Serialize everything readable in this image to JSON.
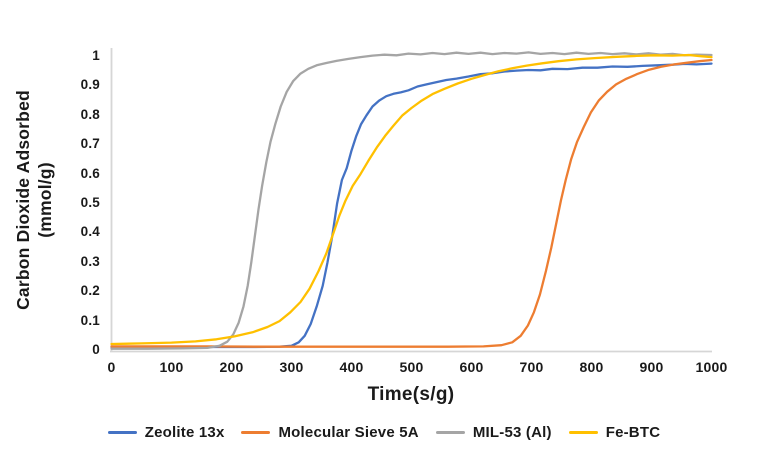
{
  "figure": {
    "background": "#FFFFFF",
    "text_color": "#1A1A1A",
    "axis_line_color": "#D6D6D6"
  },
  "chart_data": {
    "type": "line",
    "title": "",
    "xlabel": "Time(s/g)",
    "ylabel_line1": "Carbon Dioxide Adsorbed",
    "ylabel_line2": "(mmol/g)",
    "xlim": [
      0,
      1000
    ],
    "ylim": [
      0,
      1
    ],
    "grid": false,
    "legend_position": "bottom",
    "x_ticks": [
      {
        "label": "0",
        "value": 0
      },
      {
        "label": "100",
        "value": 100
      },
      {
        "label": "200",
        "value": 200
      },
      {
        "label": "300",
        "value": 300
      },
      {
        "label": "400",
        "value": 400
      },
      {
        "label": "500",
        "value": 500
      },
      {
        "label": "600",
        "value": 600
      },
      {
        "label": "700",
        "value": 700
      },
      {
        "label": "800",
        "value": 800
      },
      {
        "label": "900",
        "value": 900
      },
      {
        "label": "1000",
        "value": 1000
      }
    ],
    "y_ticks": [
      {
        "label": "1",
        "value": 1.0
      },
      {
        "label": "0.9",
        "value": 0.9
      },
      {
        "label": "0.8",
        "value": 0.8
      },
      {
        "label": "0.7",
        "value": 0.7
      },
      {
        "label": "0.6",
        "value": 0.6
      },
      {
        "label": "0.5",
        "value": 0.5
      },
      {
        "label": "0.4",
        "value": 0.4
      },
      {
        "label": "0.3",
        "value": 0.3
      },
      {
        "label": "0.2",
        "value": 0.2
      },
      {
        "label": "0.1",
        "value": 0.1
      },
      {
        "label": "0",
        "value": 0.0
      }
    ],
    "series": [
      {
        "name": "Zeolite 13x",
        "color": "#4472C4",
        "points": [
          [
            0,
            0.012
          ],
          [
            60,
            0.012
          ],
          [
            120,
            0.012
          ],
          [
            180,
            0.012
          ],
          [
            240,
            0.012
          ],
          [
            280,
            0.013
          ],
          [
            300,
            0.016
          ],
          [
            312,
            0.028
          ],
          [
            322,
            0.05
          ],
          [
            332,
            0.09
          ],
          [
            342,
            0.15
          ],
          [
            352,
            0.22
          ],
          [
            360,
            0.3
          ],
          [
            368,
            0.39
          ],
          [
            376,
            0.5
          ],
          [
            384,
            0.58
          ],
          [
            392,
            0.62
          ],
          [
            400,
            0.68
          ],
          [
            408,
            0.73
          ],
          [
            416,
            0.77
          ],
          [
            425,
            0.8
          ],
          [
            435,
            0.83
          ],
          [
            446,
            0.85
          ],
          [
            458,
            0.865
          ],
          [
            470,
            0.873
          ],
          [
            482,
            0.878
          ],
          [
            495,
            0.885
          ],
          [
            510,
            0.898
          ],
          [
            525,
            0.905
          ],
          [
            540,
            0.912
          ],
          [
            558,
            0.92
          ],
          [
            575,
            0.925
          ],
          [
            595,
            0.932
          ],
          [
            615,
            0.94
          ],
          [
            635,
            0.943
          ],
          [
            655,
            0.949
          ],
          [
            675,
            0.952
          ],
          [
            695,
            0.954
          ],
          [
            715,
            0.953
          ],
          [
            735,
            0.958
          ],
          [
            760,
            0.957
          ],
          [
            785,
            0.962
          ],
          [
            810,
            0.962
          ],
          [
            835,
            0.966
          ],
          [
            860,
            0.965
          ],
          [
            885,
            0.968
          ],
          [
            910,
            0.97
          ],
          [
            935,
            0.972
          ],
          [
            955,
            0.975
          ],
          [
            975,
            0.973
          ],
          [
            1000,
            0.976
          ]
        ]
      },
      {
        "name": "Molecular Sieve 5A",
        "color": "#ED7D31",
        "points": [
          [
            0,
            0.014
          ],
          [
            80,
            0.014
          ],
          [
            160,
            0.014
          ],
          [
            240,
            0.013
          ],
          [
            320,
            0.013
          ],
          [
            400,
            0.013
          ],
          [
            480,
            0.013
          ],
          [
            560,
            0.013
          ],
          [
            620,
            0.014
          ],
          [
            650,
            0.018
          ],
          [
            668,
            0.028
          ],
          [
            682,
            0.05
          ],
          [
            694,
            0.085
          ],
          [
            704,
            0.13
          ],
          [
            714,
            0.19
          ],
          [
            724,
            0.27
          ],
          [
            733,
            0.35
          ],
          [
            741,
            0.43
          ],
          [
            749,
            0.51
          ],
          [
            757,
            0.58
          ],
          [
            766,
            0.65
          ],
          [
            776,
            0.71
          ],
          [
            787,
            0.76
          ],
          [
            799,
            0.81
          ],
          [
            812,
            0.85
          ],
          [
            826,
            0.88
          ],
          [
            841,
            0.905
          ],
          [
            858,
            0.924
          ],
          [
            876,
            0.94
          ],
          [
            896,
            0.955
          ],
          [
            916,
            0.965
          ],
          [
            938,
            0.973
          ],
          [
            960,
            0.979
          ],
          [
            980,
            0.984
          ],
          [
            1000,
            0.988
          ]
        ]
      },
      {
        "name": "MIL-53 (Al)",
        "color": "#A5A5A5",
        "points": [
          [
            0,
            0.006
          ],
          [
            60,
            0.006
          ],
          [
            120,
            0.007
          ],
          [
            160,
            0.009
          ],
          [
            180,
            0.016
          ],
          [
            193,
            0.03
          ],
          [
            203,
            0.055
          ],
          [
            212,
            0.095
          ],
          [
            220,
            0.15
          ],
          [
            227,
            0.22
          ],
          [
            233,
            0.3
          ],
          [
            239,
            0.39
          ],
          [
            245,
            0.48
          ],
          [
            251,
            0.56
          ],
          [
            258,
            0.64
          ],
          [
            265,
            0.71
          ],
          [
            273,
            0.77
          ],
          [
            282,
            0.83
          ],
          [
            292,
            0.88
          ],
          [
            303,
            0.917
          ],
          [
            315,
            0.942
          ],
          [
            328,
            0.958
          ],
          [
            342,
            0.97
          ],
          [
            358,
            0.978
          ],
          [
            375,
            0.985
          ],
          [
            395,
            0.992
          ],
          [
            415,
            0.998
          ],
          [
            435,
            1.003
          ],
          [
            455,
            1.006
          ],
          [
            475,
            1.004
          ],
          [
            495,
            1.01
          ],
          [
            515,
            1.007
          ],
          [
            535,
            1.012
          ],
          [
            555,
            1.008
          ],
          [
            575,
            1.013
          ],
          [
            595,
            1.009
          ],
          [
            615,
            1.013
          ],
          [
            635,
            1.008
          ],
          [
            655,
            1.012
          ],
          [
            675,
            1.01
          ],
          [
            695,
            1.014
          ],
          [
            715,
            1.009
          ],
          [
            735,
            1.012
          ],
          [
            755,
            1.008
          ],
          [
            775,
            1.013
          ],
          [
            795,
            1.009
          ],
          [
            815,
            1.012
          ],
          [
            835,
            1.008
          ],
          [
            855,
            1.011
          ],
          [
            875,
            1.007
          ],
          [
            895,
            1.011
          ],
          [
            915,
            1.006
          ],
          [
            935,
            1.009
          ],
          [
            955,
            1.004
          ],
          [
            975,
            1.006
          ],
          [
            1000,
            1.005
          ]
        ]
      },
      {
        "name": "Fe-BTC",
        "color": "#FFC000",
        "points": [
          [
            0,
            0.022
          ],
          [
            50,
            0.024
          ],
          [
            100,
            0.027
          ],
          [
            140,
            0.031
          ],
          [
            175,
            0.038
          ],
          [
            205,
            0.048
          ],
          [
            235,
            0.062
          ],
          [
            260,
            0.08
          ],
          [
            280,
            0.1
          ],
          [
            298,
            0.13
          ],
          [
            315,
            0.165
          ],
          [
            330,
            0.21
          ],
          [
            345,
            0.27
          ],
          [
            358,
            0.33
          ],
          [
            370,
            0.4
          ],
          [
            380,
            0.46
          ],
          [
            390,
            0.51
          ],
          [
            402,
            0.56
          ],
          [
            415,
            0.6
          ],
          [
            428,
            0.645
          ],
          [
            442,
            0.69
          ],
          [
            456,
            0.73
          ],
          [
            470,
            0.765
          ],
          [
            485,
            0.8
          ],
          [
            500,
            0.825
          ],
          [
            517,
            0.85
          ],
          [
            535,
            0.872
          ],
          [
            555,
            0.89
          ],
          [
            577,
            0.908
          ],
          [
            600,
            0.924
          ],
          [
            622,
            0.937
          ],
          [
            645,
            0.95
          ],
          [
            668,
            0.96
          ],
          [
            692,
            0.969
          ],
          [
            718,
            0.977
          ],
          [
            745,
            0.984
          ],
          [
            775,
            0.99
          ],
          [
            808,
            0.995
          ],
          [
            842,
            0.999
          ],
          [
            875,
            1.002
          ],
          [
            905,
            1.004
          ],
          [
            935,
            1.003
          ],
          [
            962,
            1.005
          ],
          [
            982,
            1.001
          ],
          [
            1000,
            0.998
          ]
        ]
      }
    ]
  }
}
